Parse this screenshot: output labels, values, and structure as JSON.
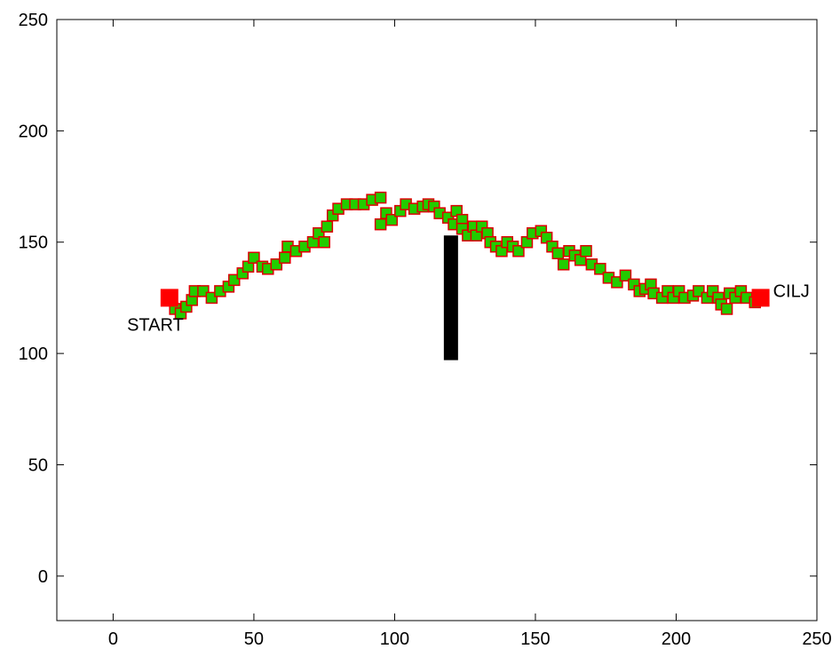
{
  "chart_data": {
    "type": "scatter",
    "title": "",
    "xlabel": "",
    "ylabel": "",
    "xlim": [
      -20,
      250
    ],
    "ylim": [
      -20,
      250
    ],
    "xticks": [
      0,
      50,
      100,
      150,
      200,
      250
    ],
    "yticks": [
      0,
      50,
      100,
      150,
      200,
      250
    ],
    "grid": false,
    "colors": {
      "path_fill": "#22cc00",
      "path_edge": "#dd0000",
      "endpoint": "#ff0000",
      "obstacle": "#000000"
    },
    "start": {
      "x": 20,
      "y": 125,
      "label": "START"
    },
    "goal": {
      "x": 230,
      "y": 125,
      "label": "CILJ"
    },
    "obstacle": {
      "x": 120,
      "y_from": 97,
      "y_to": 153
    },
    "path_points": [
      [
        22,
        120
      ],
      [
        24,
        118
      ],
      [
        26,
        121
      ],
      [
        28,
        124
      ],
      [
        29,
        128
      ],
      [
        32,
        128
      ],
      [
        35,
        125
      ],
      [
        38,
        128
      ],
      [
        41,
        130
      ],
      [
        43,
        133
      ],
      [
        46,
        136
      ],
      [
        48,
        139
      ],
      [
        50,
        143
      ],
      [
        53,
        139
      ],
      [
        55,
        138
      ],
      [
        58,
        140
      ],
      [
        61,
        143
      ],
      [
        62,
        148
      ],
      [
        65,
        146
      ],
      [
        68,
        148
      ],
      [
        71,
        150
      ],
      [
        73,
        154
      ],
      [
        75,
        150
      ],
      [
        76,
        157
      ],
      [
        78,
        162
      ],
      [
        80,
        165
      ],
      [
        83,
        167
      ],
      [
        86,
        167
      ],
      [
        89,
        167
      ],
      [
        92,
        169
      ],
      [
        95,
        170
      ],
      [
        95,
        158
      ],
      [
        97,
        163
      ],
      [
        99,
        160
      ],
      [
        102,
        164
      ],
      [
        104,
        167
      ],
      [
        107,
        165
      ],
      [
        110,
        166
      ],
      [
        112,
        167
      ],
      [
        114,
        166
      ],
      [
        116,
        163
      ],
      [
        119,
        161
      ],
      [
        121,
        158
      ],
      [
        122,
        164
      ],
      [
        124,
        160
      ],
      [
        124,
        156
      ],
      [
        126,
        153
      ],
      [
        128,
        157
      ],
      [
        129,
        153
      ],
      [
        131,
        157
      ],
      [
        133,
        154
      ],
      [
        134,
        150
      ],
      [
        136,
        148
      ],
      [
        138,
        146
      ],
      [
        140,
        150
      ],
      [
        142,
        148
      ],
      [
        144,
        146
      ],
      [
        147,
        150
      ],
      [
        149,
        154
      ],
      [
        152,
        155
      ],
      [
        154,
        152
      ],
      [
        156,
        148
      ],
      [
        158,
        145
      ],
      [
        160,
        140
      ],
      [
        162,
        146
      ],
      [
        164,
        144
      ],
      [
        166,
        142
      ],
      [
        168,
        146
      ],
      [
        170,
        140
      ],
      [
        173,
        138
      ],
      [
        176,
        134
      ],
      [
        179,
        132
      ],
      [
        182,
        135
      ],
      [
        185,
        131
      ],
      [
        187,
        128
      ],
      [
        189,
        129
      ],
      [
        191,
        131
      ],
      [
        192,
        127
      ],
      [
        195,
        125
      ],
      [
        197,
        128
      ],
      [
        199,
        125
      ],
      [
        201,
        128
      ],
      [
        203,
        125
      ],
      [
        206,
        126
      ],
      [
        208,
        128
      ],
      [
        211,
        125
      ],
      [
        213,
        128
      ],
      [
        215,
        125
      ],
      [
        216,
        122
      ],
      [
        218,
        120
      ],
      [
        219,
        127
      ],
      [
        221,
        125
      ],
      [
        223,
        128
      ],
      [
        225,
        125
      ],
      [
        228,
        123
      ]
    ]
  }
}
